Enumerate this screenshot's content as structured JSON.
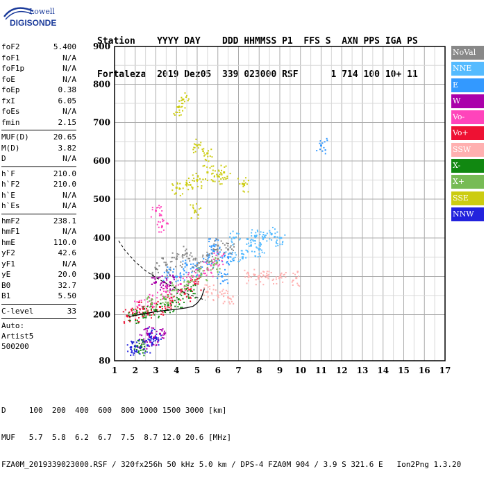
{
  "logo": {
    "line1": "Lowell",
    "line2": "DIGISONDE"
  },
  "header": {
    "line1": "Station    YYYY DAY    DDD HHMMSS P1  FFS S  AXN PPS IGA PS",
    "line2": "Fortaleza  2019 Dez05  339 023000 RSF      1 714 100 10+ 11"
  },
  "params": [
    {
      "label": "foF2",
      "value": "5.400"
    },
    {
      "label": "foF1",
      "value": "N/A"
    },
    {
      "label": "foF1p",
      "value": "N/A"
    },
    {
      "label": "foE",
      "value": "N/A"
    },
    {
      "label": "foEp",
      "value": "0.38"
    },
    {
      "label": "fxI",
      "value": "6.05"
    },
    {
      "label": "foEs",
      "value": "N/A"
    },
    {
      "label": "fmin",
      "value": "2.15"
    },
    {
      "sep": true
    },
    {
      "label": "MUF(D)",
      "value": "20.65"
    },
    {
      "label": "M(D)",
      "value": "3.82"
    },
    {
      "label": "D",
      "value": "N/A"
    },
    {
      "sep": true
    },
    {
      "label": "h`F",
      "value": "210.0"
    },
    {
      "label": "h`F2",
      "value": "210.0"
    },
    {
      "label": "h`E",
      "value": "N/A"
    },
    {
      "label": "h`Es",
      "value": "N/A"
    },
    {
      "sep": true
    },
    {
      "label": "hmF2",
      "value": "238.1"
    },
    {
      "label": "hmF1",
      "value": "N/A"
    },
    {
      "label": "hmE",
      "value": "110.0"
    },
    {
      "label": "yF2",
      "value": "42.6"
    },
    {
      "label": "yF1",
      "value": "N/A"
    },
    {
      "label": "yE",
      "value": "20.0"
    },
    {
      "label": "B0",
      "value": "32.7"
    },
    {
      "label": "B1",
      "value": "5.50"
    },
    {
      "sep": true
    },
    {
      "label": "C-level",
      "value": "33"
    },
    {
      "sep": true
    },
    {
      "text": "Auto:"
    },
    {
      "text": "Artist5"
    },
    {
      "text": "500200"
    }
  ],
  "legend": [
    {
      "label": "NoVal",
      "color": "#888888"
    },
    {
      "label": "NNE",
      "color": "#55BBFF"
    },
    {
      "label": "E",
      "color": "#3399FF"
    },
    {
      "label": "W",
      "color": "#AA00AA"
    },
    {
      "label": "Vo-",
      "color": "#FF44BB"
    },
    {
      "label": "Vo+",
      "color": "#EE1133"
    },
    {
      "label": "SSW",
      "color": "#FFB0B0"
    },
    {
      "label": "X-",
      "color": "#118811"
    },
    {
      "label": "X+",
      "color": "#77BB55"
    },
    {
      "label": "SSE",
      "color": "#CCCC11"
    },
    {
      "label": "NNW",
      "color": "#2222DD"
    }
  ],
  "footer": {
    "line1": "D     100  200  400  600  800 1000 1500 3000 [km]",
    "line2": "MUF   5.7  5.8  6.2  6.7  7.5  8.7 12.0 20.6 [MHz]",
    "line3": "FZA0M_2019339023000.RSF / 320fx256h 50 kHz 5.0 km / DPS-4 FZA0M 904 / 3.9 S 321.6 E   Ion2Png 1.3.20"
  },
  "chart_data": {
    "type": "scatter",
    "xlim": [
      1,
      17
    ],
    "ylim": [
      80,
      900
    ],
    "xticks": [
      "1",
      "2",
      "3",
      "4",
      "5",
      "6",
      "7",
      "8",
      "9",
      "10",
      "11",
      "12",
      "13",
      "14",
      "15",
      "16",
      "17"
    ],
    "yticks": [
      "80",
      "200",
      "300",
      "400",
      "500",
      "600",
      "700",
      "800",
      "900"
    ],
    "grid": true,
    "legend_placement": "right",
    "series": [
      {
        "name": "NNE",
        "color": "#55BBFF",
        "points": [
          [
            7.8,
            405
          ],
          [
            8.2,
            400
          ],
          [
            8.6,
            410
          ],
          [
            9.0,
            400
          ],
          [
            7.6,
            380
          ],
          [
            8.0,
            370
          ],
          [
            6.6,
            360
          ],
          [
            6.8,
            400
          ],
          [
            7.2,
            350
          ]
        ]
      },
      {
        "name": "E",
        "color": "#3399FF",
        "points": [
          [
            4.5,
            330
          ],
          [
            5.0,
            320
          ],
          [
            5.5,
            340
          ],
          [
            6.0,
            360
          ],
          [
            6.5,
            350
          ],
          [
            4.2,
            300
          ],
          [
            3.6,
            310
          ],
          [
            5.8,
            380
          ],
          [
            6.2,
            300
          ],
          [
            11.0,
            640
          ]
        ]
      },
      {
        "name": "W",
        "color": "#AA00AA",
        "points": [
          [
            3.0,
            285
          ],
          [
            3.4,
            285
          ],
          [
            3.7,
            285
          ],
          [
            2.6,
            150
          ],
          [
            2.9,
            140
          ],
          [
            3.2,
            150
          ],
          [
            2.4,
            130
          ]
        ]
      },
      {
        "name": "Vo-",
        "color": "#FF44BB",
        "points": [
          [
            2.2,
            225
          ],
          [
            2.8,
            240
          ],
          [
            3.5,
            260
          ],
          [
            4.2,
            280
          ],
          [
            4.8,
            300
          ],
          [
            5.5,
            320
          ],
          [
            6.0,
            345
          ],
          [
            3.0,
            470
          ],
          [
            3.3,
            430
          ]
        ]
      },
      {
        "name": "Vo+",
        "color": "#EE1133",
        "points": [
          [
            1.6,
            197
          ],
          [
            2.0,
            200
          ],
          [
            2.6,
            210
          ],
          [
            3.2,
            220
          ],
          [
            3.8,
            235
          ],
          [
            4.4,
            255
          ],
          [
            4.9,
            280
          ],
          [
            2.4,
            215
          ]
        ]
      },
      {
        "name": "SSW",
        "color": "#FFB0B0",
        "points": [
          [
            7.5,
            300
          ],
          [
            8.0,
            300
          ],
          [
            8.4,
            300
          ],
          [
            9.0,
            298
          ],
          [
            9.8,
            296
          ],
          [
            5.5,
            260
          ],
          [
            6.0,
            250
          ],
          [
            6.5,
            245
          ]
        ]
      },
      {
        "name": "X-",
        "color": "#118811",
        "points": [
          [
            1.9,
            198
          ],
          [
            2.5,
            205
          ],
          [
            3.0,
            212
          ],
          [
            3.6,
            225
          ],
          [
            4.1,
            240
          ],
          [
            4.7,
            262
          ],
          [
            2.1,
            118
          ],
          [
            2.3,
            115
          ]
        ]
      },
      {
        "name": "X+",
        "color": "#77BB55",
        "points": [
          [
            2.8,
            230
          ],
          [
            3.4,
            245
          ],
          [
            4.0,
            265
          ],
          [
            4.6,
            285
          ],
          [
            5.2,
            305
          ],
          [
            5.8,
            330
          ]
        ]
      },
      {
        "name": "SSE",
        "color": "#CCCC11",
        "points": [
          [
            4.0,
            530
          ],
          [
            4.5,
            540
          ],
          [
            5.0,
            550
          ],
          [
            5.5,
            570
          ],
          [
            6.0,
            560
          ],
          [
            6.3,
            570
          ],
          [
            4.1,
            740
          ],
          [
            4.3,
            760
          ],
          [
            5.0,
            640
          ],
          [
            5.5,
            620
          ],
          [
            7.2,
            540
          ],
          [
            4.9,
            470
          ]
        ]
      },
      {
        "name": "NNW",
        "color": "#2222DD",
        "points": [
          [
            1.8,
            115
          ],
          [
            2.0,
            118
          ],
          [
            2.6,
            120
          ],
          [
            2.7,
            150
          ],
          [
            3.0,
            140
          ]
        ]
      },
      {
        "name": "NoVal",
        "color": "#888888",
        "points": [
          [
            3.0,
            320
          ],
          [
            3.5,
            330
          ],
          [
            4.0,
            345
          ],
          [
            4.5,
            360
          ],
          [
            5.0,
            330
          ],
          [
            5.5,
            355
          ],
          [
            6.0,
            380
          ],
          [
            6.5,
            370
          ]
        ]
      }
    ],
    "trace_profile": [
      [
        1.7,
        195
      ],
      [
        2.0,
        198
      ],
      [
        2.5,
        203
      ],
      [
        3.0,
        208
      ],
      [
        3.5,
        211
      ],
      [
        4.0,
        214
      ],
      [
        4.5,
        218
      ],
      [
        4.8,
        222
      ],
      [
        5.0,
        230
      ],
      [
        5.2,
        244
      ],
      [
        5.35,
        268
      ]
    ],
    "dashed_curve": [
      [
        1.2,
        393
      ],
      [
        1.5,
        368
      ],
      [
        2.0,
        338
      ],
      [
        2.5,
        315
      ],
      [
        3.0,
        297
      ],
      [
        3.5,
        282
      ],
      [
        4.0,
        268
      ],
      [
        4.5,
        255
      ],
      [
        5.0,
        245
      ],
      [
        5.4,
        238
      ]
    ]
  }
}
